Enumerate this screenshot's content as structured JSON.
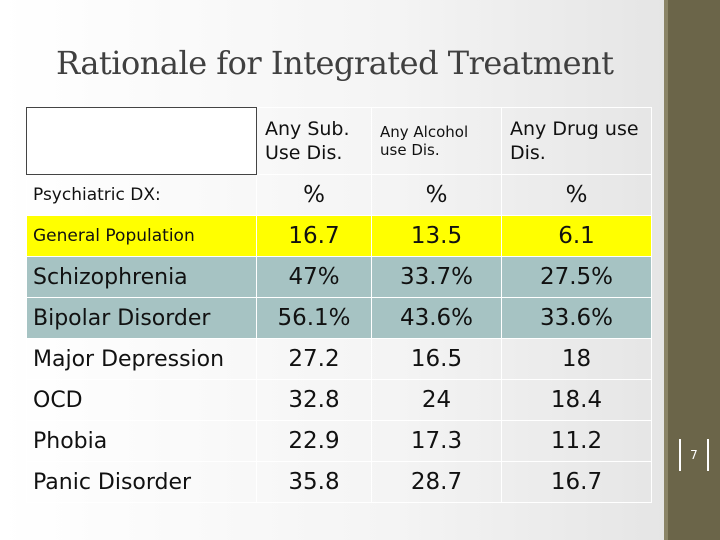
{
  "slide": {
    "title": "Rationale for Integrated Treatment",
    "page_number": "7"
  },
  "table": {
    "headers": [
      "",
      "Any Sub. Use Dis.",
      "Any Alcohol use Dis.",
      "Any Drug use Dis."
    ],
    "header_lines": {
      "col1": [
        "Any Sub.",
        "Use Dis."
      ],
      "col2": [
        "Any Alcohol",
        "use Dis."
      ],
      "col3": [
        "Any Drug use",
        "Dis."
      ]
    },
    "rows": [
      {
        "label": "Psychiatric DX:",
        "values": [
          "%",
          "%",
          "%"
        ]
      },
      {
        "label": "General Population",
        "values": [
          "16.7",
          "13.5",
          "6.1"
        ]
      },
      {
        "label": "Schizophrenia",
        "values": [
          "47%",
          "33.7%",
          "27.5%"
        ]
      },
      {
        "label": "Bipolar Disorder",
        "values": [
          "56.1%",
          "43.6%",
          "33.6%"
        ]
      },
      {
        "label": "Major Depression",
        "values": [
          "27.2",
          "16.5",
          "18"
        ]
      },
      {
        "label": "OCD",
        "values": [
          "32.8",
          "24",
          "18.4"
        ]
      },
      {
        "label": "Phobia",
        "values": [
          "22.9",
          "17.3",
          "11.2"
        ]
      },
      {
        "label": "Panic Disorder",
        "values": [
          "35.8",
          "28.7",
          "16.7"
        ]
      }
    ]
  },
  "colors": {
    "highlight_row": "#ffff00",
    "teal_rows": "#a6c3c3",
    "side_bar": "#6b6549",
    "title_text": "#404040"
  }
}
